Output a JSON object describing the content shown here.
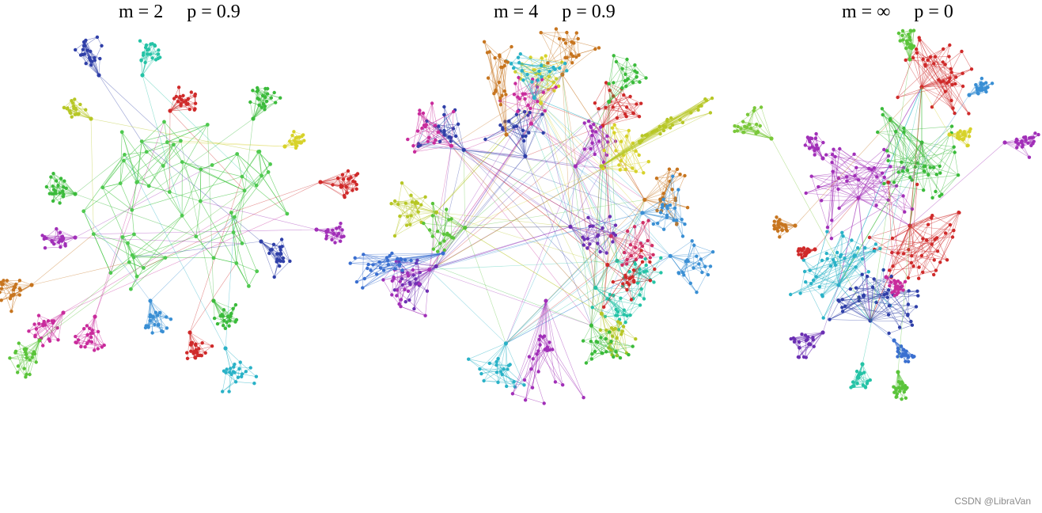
{
  "panels": [
    {
      "title": "m = 2     p = 0.9"
    },
    {
      "title": "m = 4     p = 0.9"
    },
    {
      "title": "m = ∞     p = 0"
    }
  ],
  "palette": [
    "#2f3fa8",
    "#25c3a6",
    "#b7c726",
    "#cf2a2a",
    "#3bbb3b",
    "#a12fb8",
    "#c92c9c",
    "#c7751f",
    "#3a8fd4",
    "#2ab2c7",
    "#6b2fb3",
    "#d7d22a",
    "#5ac43a",
    "#d02f66"
  ],
  "watermark": "CSDN @LibraVan"
}
